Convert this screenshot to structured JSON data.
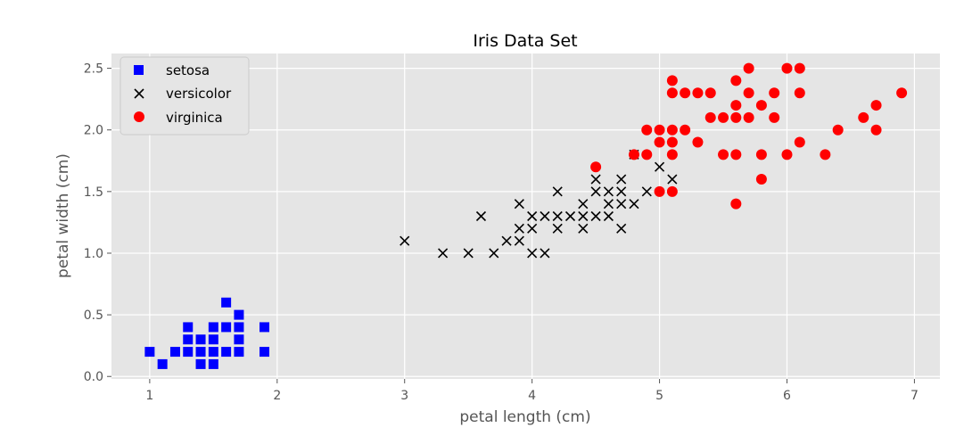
{
  "chart_data": {
    "type": "scatter",
    "title": "Iris Data Set",
    "xlabel": "petal length (cm)",
    "ylabel": "petal width (cm)",
    "xlim": [
      0.7,
      7.2
    ],
    "ylim": [
      -0.02,
      2.62
    ],
    "xticks": [
      1,
      2,
      3,
      4,
      5,
      6,
      7
    ],
    "xtick_labels": [
      "1",
      "2",
      "3",
      "4",
      "5",
      "6",
      "7"
    ],
    "yticks": [
      0.0,
      0.5,
      1.0,
      1.5,
      2.0,
      2.5
    ],
    "ytick_labels": [
      "0.0",
      "0.5",
      "1.0",
      "1.5",
      "2.0",
      "2.5"
    ],
    "grid": true,
    "legend_position": "top-left",
    "background_color": "#e5e5e5",
    "series": [
      {
        "name": "setosa",
        "marker": "square",
        "color": "#0000ff",
        "points": [
          [
            1.0,
            0.2
          ],
          [
            1.1,
            0.1
          ],
          [
            1.2,
            0.2
          ],
          [
            1.3,
            0.2
          ],
          [
            1.3,
            0.3
          ],
          [
            1.3,
            0.4
          ],
          [
            1.4,
            0.1
          ],
          [
            1.4,
            0.2
          ],
          [
            1.4,
            0.3
          ],
          [
            1.5,
            0.1
          ],
          [
            1.5,
            0.2
          ],
          [
            1.5,
            0.3
          ],
          [
            1.5,
            0.4
          ],
          [
            1.6,
            0.2
          ],
          [
            1.6,
            0.4
          ],
          [
            1.6,
            0.6
          ],
          [
            1.7,
            0.2
          ],
          [
            1.7,
            0.3
          ],
          [
            1.7,
            0.4
          ],
          [
            1.7,
            0.5
          ],
          [
            1.9,
            0.2
          ],
          [
            1.9,
            0.4
          ]
        ]
      },
      {
        "name": "versicolor",
        "marker": "x",
        "color": "#000000",
        "points": [
          [
            3.0,
            1.1
          ],
          [
            3.3,
            1.0
          ],
          [
            3.5,
            1.0
          ],
          [
            3.6,
            1.3
          ],
          [
            3.7,
            1.0
          ],
          [
            3.8,
            1.1
          ],
          [
            3.9,
            1.1
          ],
          [
            3.9,
            1.2
          ],
          [
            3.9,
            1.4
          ],
          [
            4.0,
            1.0
          ],
          [
            4.0,
            1.2
          ],
          [
            4.0,
            1.3
          ],
          [
            4.1,
            1.0
          ],
          [
            4.1,
            1.3
          ],
          [
            4.2,
            1.2
          ],
          [
            4.2,
            1.3
          ],
          [
            4.2,
            1.5
          ],
          [
            4.3,
            1.3
          ],
          [
            4.4,
            1.2
          ],
          [
            4.4,
            1.3
          ],
          [
            4.4,
            1.4
          ],
          [
            4.5,
            1.3
          ],
          [
            4.5,
            1.5
          ],
          [
            4.5,
            1.6
          ],
          [
            4.6,
            1.3
          ],
          [
            4.6,
            1.4
          ],
          [
            4.6,
            1.5
          ],
          [
            4.7,
            1.2
          ],
          [
            4.7,
            1.4
          ],
          [
            4.7,
            1.5
          ],
          [
            4.7,
            1.6
          ],
          [
            4.8,
            1.4
          ],
          [
            4.8,
            1.8
          ],
          [
            4.9,
            1.5
          ],
          [
            5.0,
            1.7
          ],
          [
            5.1,
            1.6
          ]
        ]
      },
      {
        "name": "virginica",
        "marker": "circle",
        "color": "#ff0000",
        "points": [
          [
            4.5,
            1.7
          ],
          [
            4.8,
            1.8
          ],
          [
            4.9,
            1.8
          ],
          [
            4.9,
            2.0
          ],
          [
            5.0,
            1.5
          ],
          [
            5.0,
            1.9
          ],
          [
            5.0,
            2.0
          ],
          [
            5.1,
            1.5
          ],
          [
            5.1,
            1.8
          ],
          [
            5.1,
            1.9
          ],
          [
            5.1,
            2.0
          ],
          [
            5.1,
            2.3
          ],
          [
            5.1,
            2.4
          ],
          [
            5.2,
            2.0
          ],
          [
            5.2,
            2.3
          ],
          [
            5.3,
            1.9
          ],
          [
            5.3,
            2.3
          ],
          [
            5.4,
            2.1
          ],
          [
            5.4,
            2.3
          ],
          [
            5.5,
            1.8
          ],
          [
            5.5,
            2.1
          ],
          [
            5.6,
            1.4
          ],
          [
            5.6,
            1.8
          ],
          [
            5.6,
            2.1
          ],
          [
            5.6,
            2.2
          ],
          [
            5.6,
            2.4
          ],
          [
            5.7,
            2.1
          ],
          [
            5.7,
            2.3
          ],
          [
            5.7,
            2.5
          ],
          [
            5.8,
            1.6
          ],
          [
            5.8,
            1.8
          ],
          [
            5.8,
            2.2
          ],
          [
            5.9,
            2.1
          ],
          [
            5.9,
            2.3
          ],
          [
            6.0,
            1.8
          ],
          [
            6.0,
            2.5
          ],
          [
            6.1,
            1.9
          ],
          [
            6.1,
            2.3
          ],
          [
            6.1,
            2.5
          ],
          [
            6.3,
            1.8
          ],
          [
            6.4,
            2.0
          ],
          [
            6.6,
            2.1
          ],
          [
            6.7,
            2.0
          ],
          [
            6.7,
            2.2
          ],
          [
            6.9,
            2.3
          ]
        ]
      }
    ]
  }
}
